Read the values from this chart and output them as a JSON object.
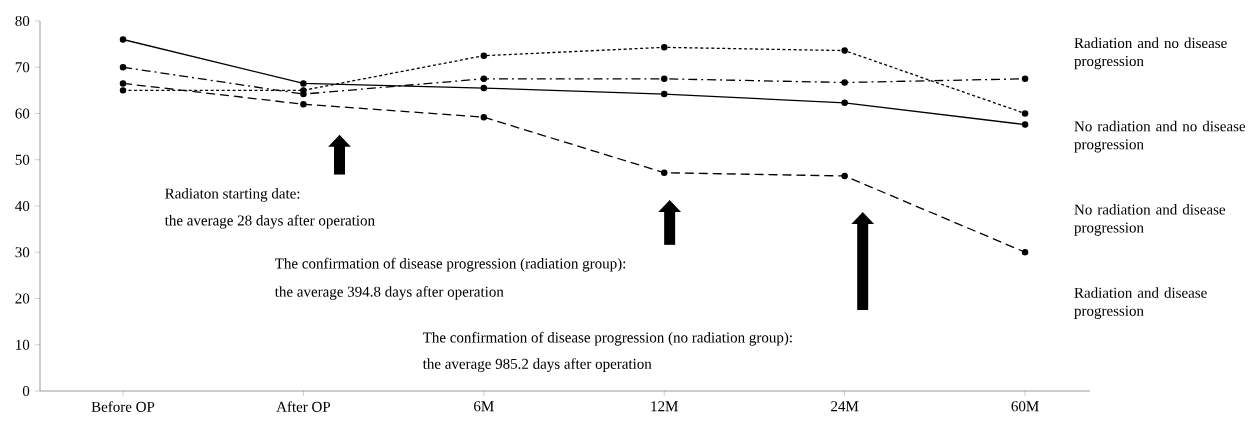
{
  "chart_data": {
    "type": "line",
    "categories": [
      "Before OP",
      "After OP",
      "6M",
      "12M",
      "24M",
      "60M"
    ],
    "ylim": [
      0,
      80
    ],
    "yticks": [
      0,
      10,
      20,
      30,
      40,
      50,
      60,
      70,
      80
    ],
    "grid": false,
    "legend": false,
    "marker": "circle",
    "series": [
      {
        "name": "Radiation and no disease progression",
        "color": "#000000",
        "line_style": "dashdot",
        "values": [
          70,
          64.2,
          67.5,
          67.5,
          66.7,
          67.5
        ]
      },
      {
        "name": "No radiation and no disease progression",
        "color": "#000000",
        "line_style": "dotted",
        "values": [
          65,
          65,
          72.5,
          74.3,
          73.6,
          60
        ]
      },
      {
        "name": "No radiation and disease progression",
        "color": "#000000",
        "line_style": "solid",
        "values": [
          76,
          66.5,
          65.5,
          64.2,
          62.3,
          57.6
        ]
      },
      {
        "name": "Radiation and disease progression",
        "color": "#000000",
        "line_style": "dashed",
        "values": [
          66.5,
          62,
          59.2,
          47.2,
          46.5,
          30
        ]
      }
    ],
    "annotations": [
      "Radiaton starting date:",
      "the average 28 days after operation",
      "The confirmation of disease progression (radiation group):",
      "the average 394.8 days after operation",
      "The confirmation of disease progression (no radiation group):",
      "the average 985.2 days after operation"
    ]
  }
}
